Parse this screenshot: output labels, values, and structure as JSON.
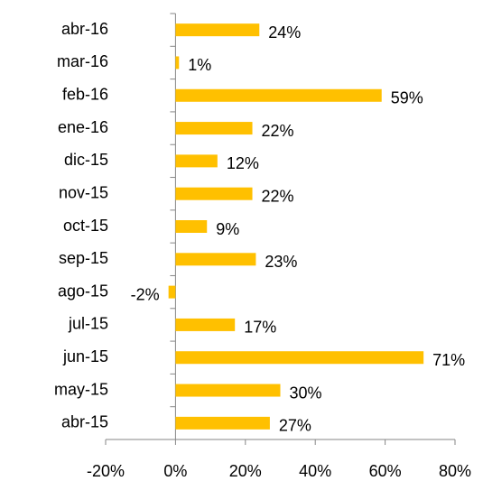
{
  "chart_data": {
    "type": "hbar",
    "categories": [
      "abr-15",
      "may-15",
      "jun-15",
      "jul-15",
      "ago-15",
      "sep-15",
      "oct-15",
      "nov-15",
      "dic-15",
      "ene-16",
      "feb-16",
      "mar-16",
      "abr-16"
    ],
    "values": [
      27,
      30,
      71,
      17,
      -2,
      23,
      9,
      22,
      12,
      22,
      59,
      1,
      24
    ],
    "value_labels": [
      "27%",
      "30%",
      "71%",
      "17%",
      "-2%",
      "23%",
      "9%",
      "22%",
      "12%",
      "22%",
      "59%",
      "1%",
      "24%"
    ],
    "color": "#ffc000",
    "xlim": [
      -20,
      80
    ],
    "xticks": [
      {
        "value": -20,
        "label": "-20%"
      },
      {
        "value": 0,
        "label": "0%"
      },
      {
        "value": 20,
        "label": "20%"
      },
      {
        "value": 40,
        "label": "40%"
      },
      {
        "value": 60,
        "label": "60%"
      },
      {
        "value": 80,
        "label": "80%"
      }
    ]
  }
}
